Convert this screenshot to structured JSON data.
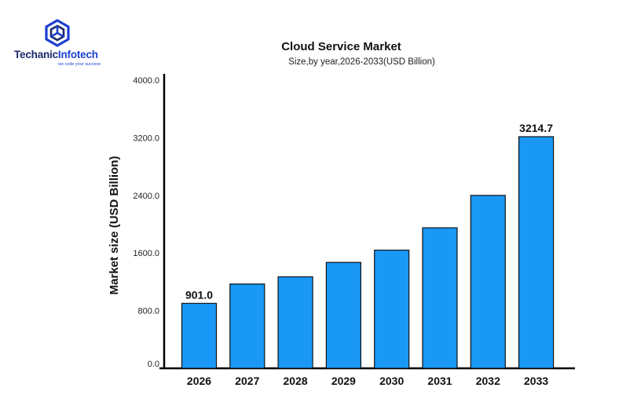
{
  "logo": {
    "icon": "hexagon-logo-icon",
    "name_part1": "Techanic",
    "name_part2": "Infotech",
    "tagline": "we code your success",
    "color": "#1d3fd1"
  },
  "chart_data": {
    "type": "bar",
    "title": "Cloud Service Market",
    "subtitle": "Size,by year,2026-2033(USD Billion)",
    "ylabel": "Market size (USD Billion)",
    "xlabel": "",
    "categories": [
      "2026",
      "2027",
      "2028",
      "2029",
      "2030",
      "2031",
      "2032",
      "2033"
    ],
    "values": [
      901.0,
      1170,
      1270,
      1470,
      1640,
      1950,
      2400,
      3214.7
    ],
    "data_labels": [
      {
        "index": 0,
        "text": "901.0"
      },
      {
        "index": 7,
        "text": "3214.7"
      }
    ],
    "yticks": [
      "0.0",
      "800.0",
      "1600.0",
      "2400.0",
      "3200.0",
      "4000.0"
    ],
    "ylim": [
      0,
      4000
    ],
    "bar_color": "#1a98f5",
    "grid": false,
    "legend": "none"
  }
}
